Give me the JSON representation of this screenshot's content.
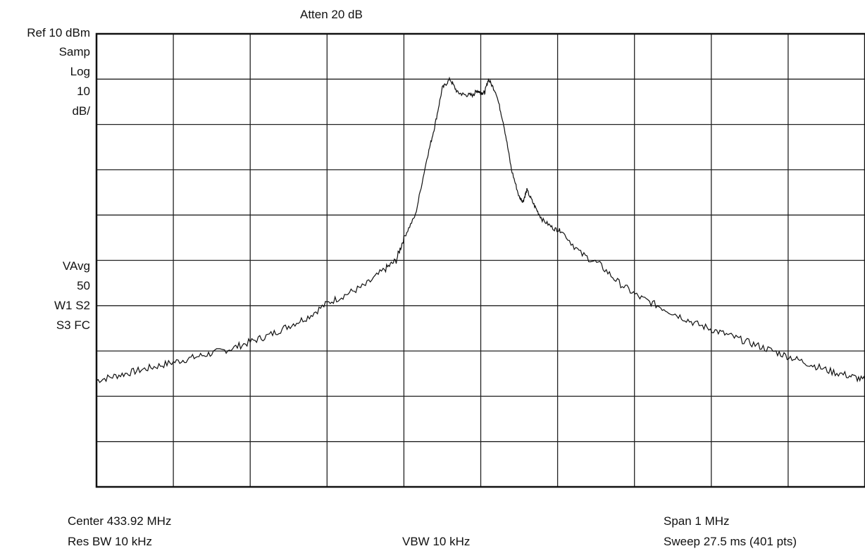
{
  "header": {
    "atten": "Atten 20 dB",
    "ref": "Ref 10 dBm",
    "detector": "Samp",
    "scale_type": "Log",
    "scale_value": "10",
    "scale_unit": "dB/",
    "avg_mode": "VAvg",
    "avg_count": "50",
    "trace_flags_1": "W1 S2",
    "trace_flags_2": "S3 FC"
  },
  "footer": {
    "center": "Center 433.92 MHz",
    "span": "Span 1 MHz",
    "rbw": "Res BW 10 kHz",
    "vbw": "VBW 10 kHz",
    "sweep": "Sweep 27.5 ms (401 pts)"
  },
  "chart_data": {
    "type": "line",
    "xlim": [
      433.42,
      434.42
    ],
    "ylim": [
      -90,
      10
    ],
    "grid": true,
    "series": [
      {
        "color": "#111111",
        "x": [
          433.42,
          433.445,
          433.47,
          433.495,
          433.52,
          433.545,
          433.57,
          433.595,
          433.62,
          433.645,
          433.67,
          433.695,
          433.72,
          433.745,
          433.77,
          433.795,
          433.81,
          433.82,
          433.835,
          433.85,
          433.86,
          433.87,
          433.88,
          433.89,
          433.9,
          433.91,
          433.915,
          433.92,
          433.925,
          433.93,
          433.94,
          433.95,
          433.96,
          433.97,
          433.975,
          433.98,
          433.99,
          434.0,
          434.015,
          434.025,
          434.05,
          434.075,
          434.1,
          434.125,
          434.15,
          434.175,
          434.2,
          434.225,
          434.25,
          434.275,
          434.3,
          434.325,
          434.35,
          434.375,
          434.4,
          434.42
        ],
        "y": [
          -66.5,
          -65.5,
          -64.5,
          -63.5,
          -62.5,
          -61.5,
          -60.5,
          -59.5,
          -58,
          -56.5,
          -54.5,
          -52.5,
          -49.5,
          -47.5,
          -45.5,
          -42,
          -40,
          -35,
          -30,
          -17.5,
          -10.5,
          -2,
          0,
          -3,
          -3.5,
          -3.5,
          -2.5,
          -3,
          -3,
          0,
          -3,
          -10,
          -20,
          -26,
          -27,
          -24.5,
          -28,
          -31,
          -33,
          -33.5,
          -38.5,
          -41,
          -45,
          -48,
          -50,
          -52,
          -54,
          -55.5,
          -57,
          -58.5,
          -60,
          -61.5,
          -63,
          -64.5,
          -65.5,
          -66.5
        ]
      }
    ]
  }
}
